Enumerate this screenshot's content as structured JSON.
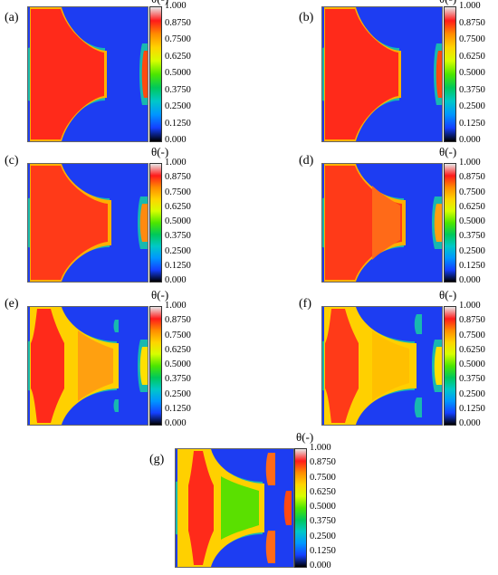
{
  "colorbar": {
    "title": "θ(-)",
    "ticks": [
      "1.000",
      "0.8750",
      "0.7500",
      "0.6250",
      "0.5000",
      "0.3750",
      "0.2500",
      "0.1250",
      "0.000"
    ],
    "gradient": [
      "#e8e8e8",
      "#ff1a1a",
      "#ff8c00",
      "#ffd400",
      "#d6ff00",
      "#4de600",
      "#00c85a",
      "#00c8c8",
      "#0096ff",
      "#1440ff",
      "#000000"
    ]
  },
  "panels": [
    {
      "label": "(a)",
      "core_color": "#ff2a1a",
      "mid_color": "#ff2a1a",
      "side_color": "#ff4a10"
    },
    {
      "label": "(b)",
      "core_color": "#ff2a1a",
      "mid_color": "#ff2a1a",
      "side_color": "#ff4a10"
    },
    {
      "label": "(c)",
      "core_color": "#ff2a1a",
      "mid_color": "#ff3a18",
      "side_color": "#ff8a10"
    },
    {
      "label": "(d)",
      "core_color": "#ff2a1a",
      "mid_color": "#ff6a18",
      "side_color": "#ffa010"
    },
    {
      "label": "(e)",
      "core_color": "#ff2a1a",
      "mid_color": "#ffa010",
      "side_color": "#ffd000"
    },
    {
      "label": "(f)",
      "core_color": "#ff2a1a",
      "mid_color": "#ffc000",
      "side_color": "#ffe000"
    },
    {
      "label": "(g)",
      "core_color": "#ff2a1a",
      "mid_color": "#5ae000",
      "side_color": "#ffd000"
    }
  ]
}
